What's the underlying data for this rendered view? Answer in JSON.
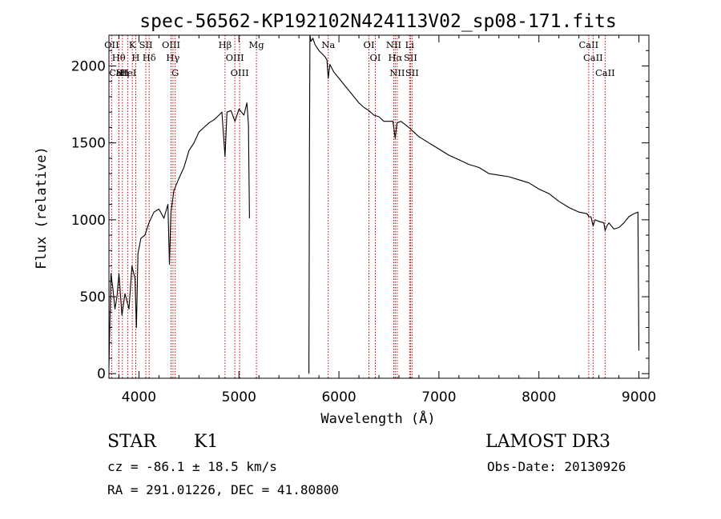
{
  "chart_data": {
    "type": "line",
    "title": "spec-56562-KP192102N424113V02_sp08-171.fits",
    "xlabel": "Wavelength (Å)",
    "ylabel": "Flux (relative)",
    "xlim": [
      3700,
      9100
    ],
    "ylim": [
      -30,
      2200
    ],
    "x_ticks": [
      4000,
      5000,
      6000,
      7000,
      8000,
      9000
    ],
    "x_tick_labels": [
      "4000",
      "5000",
      "6000",
      "7000",
      "8000",
      "9000"
    ],
    "y_ticks": [
      0,
      500,
      1000,
      1500,
      2000
    ],
    "y_tick_labels": [
      "0",
      "500",
      "1000",
      "1500",
      "2000"
    ],
    "series": [
      {
        "name": "flux",
        "segments": [
          {
            "x": [
              3700,
              3720,
              3740,
              3760,
              3780,
              3800,
              3830,
              3860,
              3900,
              3930,
              3960,
              3975,
              3990,
              4020,
              4060,
              4100,
              4150,
              4200,
              4250,
              4290,
              4305,
              4320,
              4350,
              4400,
              4450,
              4500,
              4550,
              4600,
              4650,
              4700,
              4750,
              4800,
              4830,
              4861,
              4880,
              4920,
              4960,
              5000,
              5050,
              5080,
              5095,
              5105
            ],
            "y": [
              50,
              650,
              550,
              420,
              500,
              650,
              380,
              520,
              420,
              700,
              620,
              300,
              780,
              880,
              900,
              980,
              1050,
              1070,
              1010,
              1100,
              710,
              1050,
              1190,
              1270,
              1340,
              1450,
              1500,
              1570,
              1600,
              1630,
              1650,
              1680,
              1700,
              1410,
              1700,
              1710,
              1640,
              1720,
              1680,
              1760,
              1620,
              1010
            ]
          },
          {
            "x": [
              5700,
              5705,
              5710,
              5720,
              5740,
              5760,
              5780,
              5800,
              5830,
              5860,
              5880,
              5893,
              5910,
              5950,
              6000,
              6050,
              6100,
              6150,
              6200,
              6250,
              6300,
              6350,
              6400,
              6450,
              6500,
              6540,
              6563,
              6580,
              6620,
              6660,
              6700,
              6750,
              6800,
              6850,
              6900,
              6950,
              7000,
              7100,
              7200,
              7300,
              7400,
              7500,
              7600,
              7700,
              7800,
              7900,
              8000,
              8100,
              8200,
              8300,
              8400,
              8480,
              8500,
              8520,
              8542,
              8560,
              8600,
              8650,
              8662,
              8680,
              8700,
              8750,
              8800,
              8850,
              8900,
              8950,
              8990,
              9000
            ],
            "y": [
              0,
              1460,
              2200,
              2160,
              2180,
              2140,
              2120,
              2100,
              2080,
              2060,
              2040,
              1920,
              2010,
              1960,
              1920,
              1880,
              1840,
              1800,
              1760,
              1730,
              1710,
              1680,
              1670,
              1640,
              1640,
              1640,
              1530,
              1630,
              1640,
              1620,
              1600,
              1570,
              1540,
              1520,
              1500,
              1480,
              1460,
              1420,
              1390,
              1360,
              1340,
              1300,
              1290,
              1280,
              1260,
              1240,
              1200,
              1170,
              1120,
              1080,
              1050,
              1040,
              1020,
              1020,
              960,
              1000,
              990,
              980,
              930,
              960,
              980,
              940,
              950,
              980,
              1020,
              1040,
              1050,
              150
            ]
          }
        ]
      }
    ],
    "line_markers": [
      {
        "label": "OII",
        "wavelength": 3727
      },
      {
        "label": "Hθ",
        "wavelength": 3798
      },
      {
        "label": "CaII",
        "wavelength": 3800
      },
      {
        "label": "Hη",
        "wavelength": 3835
      },
      {
        "label": "HeI",
        "wavelength": 3889
      },
      {
        "label": "K",
        "wavelength": 3934
      },
      {
        "label": "H",
        "wavelength": 3968
      },
      {
        "label": "SII",
        "wavelength": 4069
      },
      {
        "label": "Hδ",
        "wavelength": 4102
      },
      {
        "label": "OIII",
        "wavelength": 4321
      },
      {
        "label": "Hγ",
        "wavelength": 4340
      },
      {
        "label": "G",
        "wavelength": 4363
      },
      {
        "label": "Hβ",
        "wavelength": 4861
      },
      {
        "label": "OIII",
        "wavelength": 4959
      },
      {
        "label": "OIII",
        "wavelength": 5007
      },
      {
        "label": "Mg",
        "wavelength": 5175
      },
      {
        "label": "Na",
        "wavelength": 5893
      },
      {
        "label": "OI",
        "wavelength": 6300
      },
      {
        "label": "OI",
        "wavelength": 6364
      },
      {
        "label": "NII",
        "wavelength": 6548
      },
      {
        "label": "Hα",
        "wavelength": 6563
      },
      {
        "label": "NII",
        "wavelength": 6583
      },
      {
        "label": "Li",
        "wavelength": 6707
      },
      {
        "label": "SII",
        "wavelength": 6716
      },
      {
        "label": "SII",
        "wavelength": 6731
      },
      {
        "label": "CaII",
        "wavelength": 8498
      },
      {
        "label": "CaII",
        "wavelength": 8542
      },
      {
        "label": "CaII",
        "wavelength": 8662
      }
    ]
  },
  "info": {
    "object_class": "STAR",
    "subclass": "K1",
    "survey": "LAMOST DR3",
    "redshift": "cz = -86.1 ± 18.5 km/s",
    "obs_date": "Obs-Date: 20130926",
    "coords": "RA = 291.01226, DEC =  41.80800"
  },
  "colors": {
    "spectrum": "#000000",
    "markers": "#cc0000",
    "axes": "#000000",
    "background": "#ffffff"
  }
}
